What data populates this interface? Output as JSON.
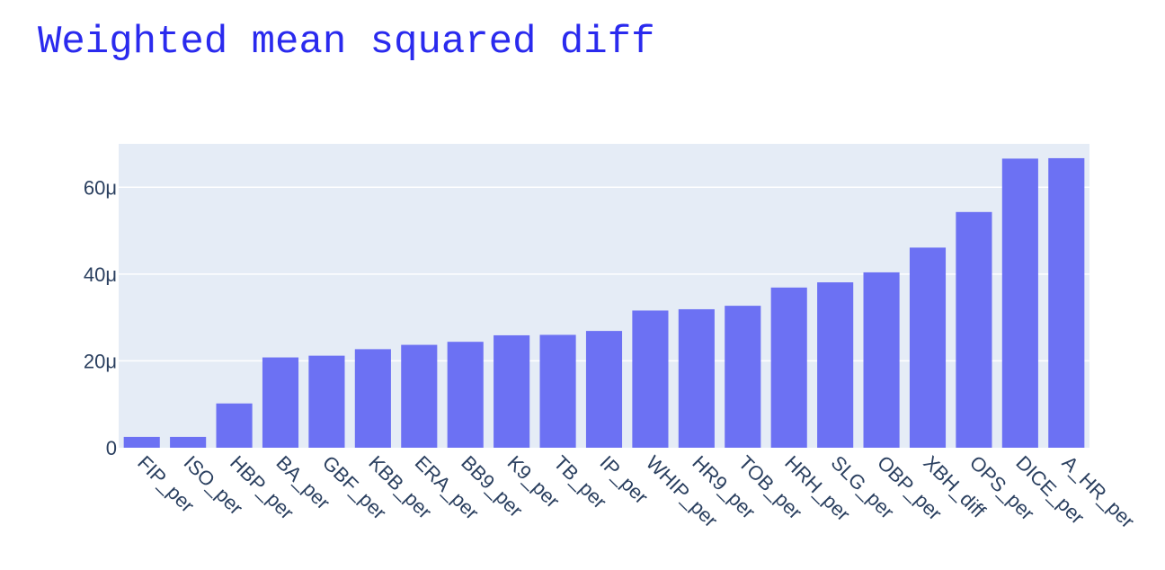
{
  "chart_data": {
    "type": "bar",
    "title": "Weighted mean squared diff",
    "xlabel": "",
    "ylabel": "",
    "categories": [
      "FIP_per",
      "ISO_per",
      "HBP_per",
      "BA_per",
      "GBF_per",
      "KBB_per",
      "ERA_per",
      "BB9_per",
      "K9_per",
      "TB_per",
      "IP_per",
      "WHIP_per",
      "HR9_per",
      "TOB_per",
      "HRH_per",
      "SLG_per",
      "OBP_per",
      "XBH_diff",
      "OPS_per",
      "DICE_per",
      "A_HR_per"
    ],
    "values": [
      2.5e-06,
      2.5e-06,
      1.02e-05,
      2.08e-05,
      2.12e-05,
      2.27e-05,
      2.37e-05,
      2.44e-05,
      2.59e-05,
      2.6e-05,
      2.69e-05,
      3.16e-05,
      3.19e-05,
      3.27e-05,
      3.69e-05,
      3.81e-05,
      4.04e-05,
      4.61e-05,
      5.43e-05,
      6.66e-05,
      6.67e-05
    ],
    "ylim": [
      0,
      7e-05
    ],
    "yticks": [
      0,
      2e-05,
      4e-05,
      6e-05
    ],
    "ytick_labels": [
      "0",
      "20μ",
      "40μ",
      "60μ"
    ],
    "grid": true,
    "colors": {
      "bar": "#6c71f3",
      "plot_bg": "#e5ecf6",
      "grid": "#ffffff",
      "title": "#2a2aee",
      "tick_text": "#2a3f5f"
    }
  }
}
